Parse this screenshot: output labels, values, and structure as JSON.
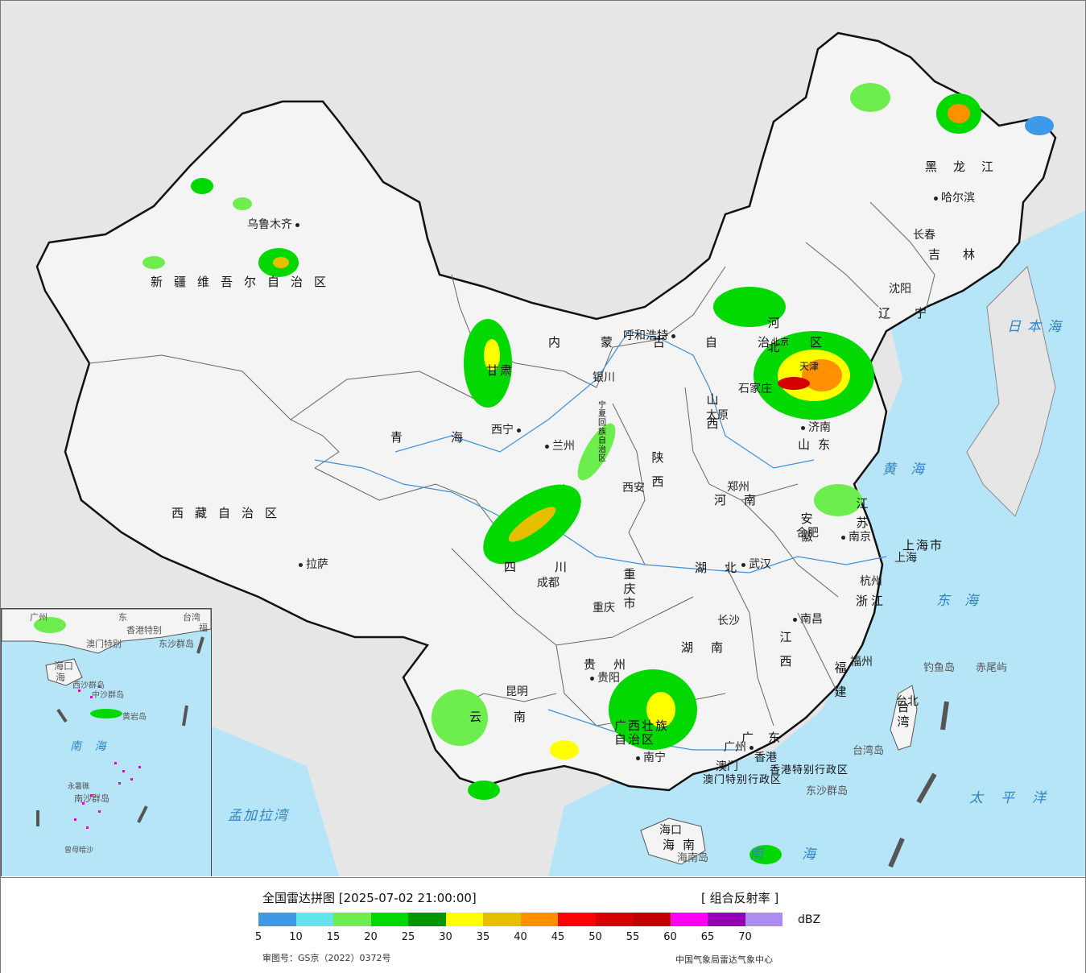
{
  "legend": {
    "title": "全国雷达拼图 [2025-07-02 21:00:00]",
    "product": "[ 组合反射率 ]",
    "unit": "dBZ",
    "review_number": "审图号：GS京（2022）0372号",
    "agency": "中国气象局雷达气象中心",
    "colors": [
      "#3d9ae8",
      "#64e4e8",
      "#6eee4e",
      "#00d800",
      "#009600",
      "#ffff00",
      "#e6c000",
      "#ff9000",
      "#ff0000",
      "#d60000",
      "#c00000",
      "#ff00f0",
      "#9600b4",
      "#ac8cf0"
    ],
    "ticks": [
      "5",
      "10",
      "15",
      "20",
      "25",
      "30",
      "35",
      "40",
      "45",
      "50",
      "55",
      "60",
      "65",
      "70"
    ]
  },
  "provinces": {
    "xinjiang": "新疆维吾尔自治区",
    "xizang": "西藏自治区",
    "qinghai": "青海",
    "gansu": "甘肃",
    "neimenggu": "内蒙古自治区",
    "heilongjiang": "黑龙江",
    "jilin": "吉林",
    "liaoning": "辽宁",
    "hebei": "河北",
    "beijing": "北京",
    "tianjin": "天津",
    "shanxi": "山西",
    "shandong": "山东",
    "shaanxi": "陕西",
    "henan": "河南",
    "ningxia": "宁夏回族自治区",
    "sichuan": "四川",
    "chongqing": "重庆市",
    "hubei": "湖北",
    "anhui": "安徽",
    "jiangsu": "江苏",
    "shanghai": "上海市",
    "zhejiang": "浙江",
    "jiangxi": "江西",
    "hunan": "湖南",
    "guizhou": "贵州",
    "yunnan": "云南",
    "guangxi": "广西壮族自治区",
    "guangdong": "广东",
    "fujian": "福建",
    "taiwan": "台湾",
    "hainan": "海南",
    "hongkong": "香港特别行政区",
    "macao": "澳门特别行政区"
  },
  "cities": {
    "urumqi": "乌鲁木齐",
    "lhasa": "拉萨",
    "xining": "西宁",
    "lanzhou": "兰州",
    "yinchuan": "银川",
    "hohhot": "呼和浩特",
    "harbin": "哈尔滨",
    "changchun": "长春",
    "shenyang": "沈阳",
    "beijing": "北京",
    "tianjin": "天津",
    "shijiazhuang": "石家庄",
    "taiyuan": "太原",
    "jinan": "济南",
    "zhengzhou": "郑州",
    "xian": "西安",
    "chengdu": "成都",
    "chongqing": "重庆",
    "wuhan": "武汉",
    "hefei": "合肥",
    "nanjing": "南京",
    "shanghai": "上海",
    "hangzhou": "杭州",
    "nanchang": "南昌",
    "changsha": "长沙",
    "guiyang": "贵阳",
    "kunming": "昆明",
    "nanning": "南宁",
    "guangzhou": "广州",
    "fuzhou": "福州",
    "taipei": "台北",
    "haikou": "海口",
    "hongkong": "香港",
    "macao": "澳门"
  },
  "islands": {
    "diaoyu": "钓鱼岛",
    "chiwei": "赤尾屿",
    "dongsha": "东沙群岛",
    "hainan_island": "海南岛",
    "taiwan_island": "台湾岛"
  },
  "seas": {
    "japan": "日本海",
    "yellow": "黄海",
    "east": "东海",
    "pacific": "太平洋",
    "south": "南海",
    "bengal": "孟加拉湾"
  },
  "inset": {
    "guangzhou": "广州",
    "hongkong_sar": "香港特别",
    "macao_sar": "澳门特别",
    "hainan": "海",
    "haikou": "海口",
    "xisha": "西沙群岛",
    "zhongsha": "中沙群岛",
    "huangyan": "黄岩岛",
    "south_sea": "南 海",
    "nansha": "南沙群岛",
    "zengmu": "曾母暗沙",
    "yongshu": "永暑礁",
    "taiwan": "台湾",
    "dongsha": "东沙群岛",
    "fujian": "福",
    "guangdong": "东"
  }
}
